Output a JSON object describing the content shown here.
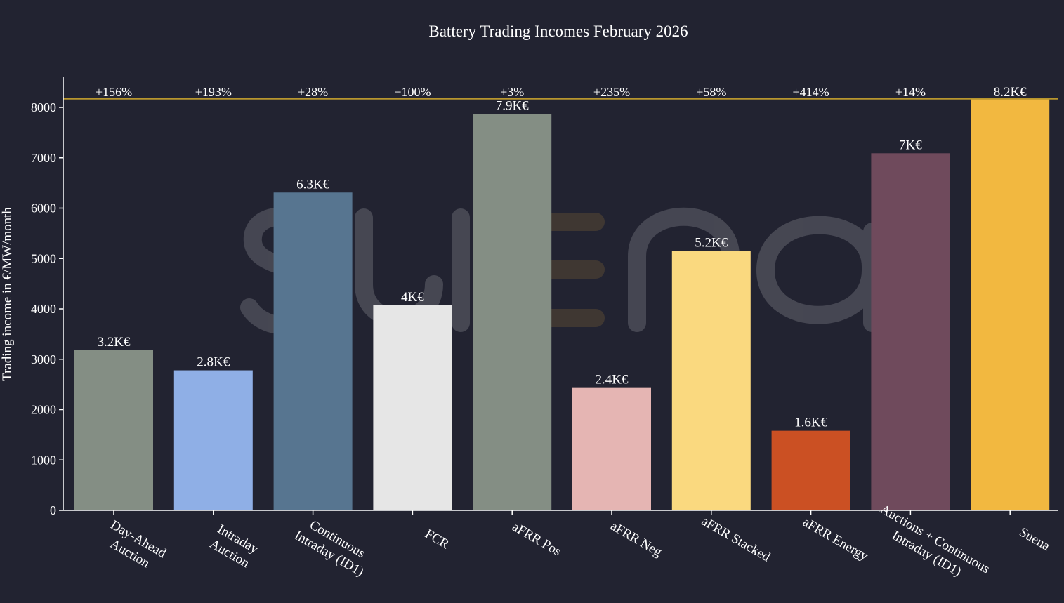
{
  "chart_data": {
    "type": "bar",
    "title": "Battery Trading Incomes February 2026",
    "xlabel": "",
    "ylabel": "Trading income in €/MW/month",
    "ylim": [
      0,
      8200
    ],
    "yticks": [
      0,
      1000,
      2000,
      3000,
      4000,
      5000,
      6000,
      7000,
      8000
    ],
    "grid": false,
    "categories": [
      [
        "Day-Ahead",
        "Auction"
      ],
      [
        "Intraday",
        "Auction"
      ],
      [
        "Continuous",
        "Intraday (ID1)"
      ],
      [
        "FCR"
      ],
      [
        "aFRR Pos"
      ],
      [
        "aFRR Neg"
      ],
      [
        "aFRR Stacked"
      ],
      [
        "aFRR Energy"
      ],
      [
        "Auctions + Continuous",
        "Intraday (ID1)"
      ],
      [
        "Suena"
      ]
    ],
    "values": [
      3180,
      2780,
      6310,
      4070,
      7870,
      2430,
      5150,
      1580,
      7090,
      8170
    ],
    "value_labels": [
      "3.2K€",
      "2.8K€",
      "6.3K€",
      "4K€",
      "7.9K€",
      "2.4K€",
      "5.2K€",
      "1.6K€",
      "7K€",
      "8.2K€"
    ],
    "delta_labels": [
      "+156%",
      "+193%",
      "+28%",
      "+100%",
      "+3%",
      "+235%",
      "+58%",
      "+414%",
      "+14%",
      ""
    ],
    "colors": [
      "#848e84",
      "#8fafe6",
      "#577590",
      "#e6e6e6",
      "#848e84",
      "#e5b5b3",
      "#fad97f",
      "#cb5023",
      "#6f4a5c",
      "#f2b840"
    ],
    "reference_line": {
      "value": 8170,
      "color": "#b8962e"
    },
    "background": "#222331",
    "watermark": "suena"
  }
}
